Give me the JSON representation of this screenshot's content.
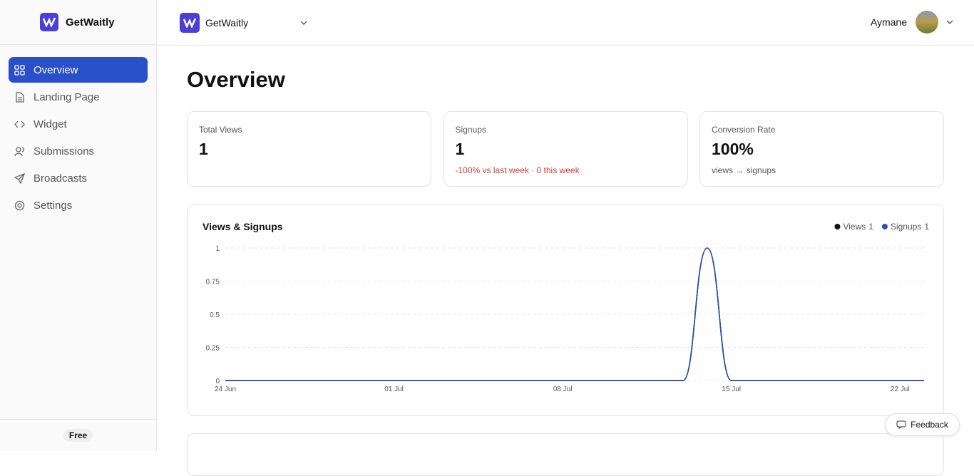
{
  "sidebar": {
    "brand": "GetWaitly",
    "nav": [
      "Overview",
      "Landing Page",
      "Widget",
      "Submissions",
      "Broadcasts",
      "Settings"
    ],
    "plan": "Free"
  },
  "header": {
    "project": "GetWaitly",
    "user": "Aymane"
  },
  "page": {
    "title": "Overview"
  },
  "stats": [
    {
      "label": "Total Views",
      "value": 1
    },
    {
      "label": "Signups",
      "value": 1,
      "note": "-100% vs last week · 0 this week"
    },
    {
      "label": "Conversion Rate",
      "value": "100%",
      "note": "views → signups"
    }
  ],
  "chart_data": {
    "type": "line",
    "title": "Views & Signups",
    "categories": [
      "24 Jun",
      null,
      null,
      null,
      null,
      null,
      null,
      "01 Jul",
      null,
      null,
      null,
      null,
      null,
      null,
      "08 Jul",
      null,
      null,
      null,
      null,
      null,
      null,
      "15 Jul",
      null,
      null,
      null,
      null,
      null,
      null,
      "22 Jul",
      null
    ],
    "series": [
      {
        "name": "Views",
        "total": 1,
        "color": "#111111",
        "values": [
          0,
          0,
          0,
          0,
          0,
          0,
          0,
          0,
          0,
          0,
          0,
          0,
          0,
          0,
          0,
          0,
          0,
          0,
          0,
          0,
          1,
          0,
          0,
          0,
          0,
          0,
          0,
          0,
          0,
          0
        ]
      },
      {
        "name": "Signups",
        "total": 1,
        "color": "#2a4fb8",
        "values": [
          0,
          0,
          0,
          0,
          0,
          0,
          0,
          0,
          0,
          0,
          0,
          0,
          0,
          0,
          0,
          0,
          0,
          0,
          0,
          0,
          1,
          0,
          0,
          0,
          0,
          0,
          0,
          0,
          0,
          0
        ]
      }
    ],
    "ylim": [
      0,
      1
    ],
    "yticks": [
      0,
      0.25,
      0.5,
      0.75,
      1
    ],
    "grid": true
  },
  "feedback": "Feedback"
}
